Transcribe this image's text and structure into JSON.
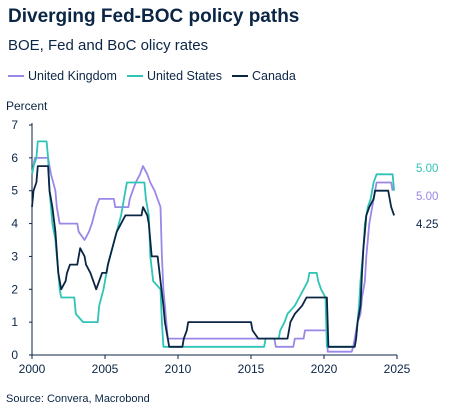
{
  "header": {
    "title": "Diverging Fed-BOC policy paths",
    "subtitle": "BOE, Fed and BoC olicy rates"
  },
  "footer": {
    "source": "Source: Convera, Macrobond"
  },
  "colors": {
    "uk": "#9b87e8",
    "us": "#2ec4b6",
    "canada": "#0b2545"
  },
  "chart_data": {
    "type": "line",
    "ylabel": "Percent",
    "xlabel": "",
    "ylim": [
      0,
      7
    ],
    "xlim": [
      2000,
      2025
    ],
    "yticks": [
      "0",
      "1",
      "2",
      "3",
      "4",
      "5",
      "6",
      "7"
    ],
    "xticks": [
      "2000",
      "2005",
      "2010",
      "2015",
      "2020",
      "2025"
    ],
    "legend_position": "top-left",
    "grid": false,
    "series": [
      {
        "name": "United Kingdom",
        "key": "uk",
        "end_label": "5.00",
        "points": [
          [
            2000,
            5.5
          ],
          [
            2000.1,
            5.75
          ],
          [
            2000.2,
            6.0
          ],
          [
            2001.1,
            6.0
          ],
          [
            2001.2,
            5.75
          ],
          [
            2001.3,
            5.5
          ],
          [
            2001.6,
            5.0
          ],
          [
            2001.7,
            4.5
          ],
          [
            2001.9,
            4.0
          ],
          [
            2003.1,
            4.0
          ],
          [
            2003.2,
            3.75
          ],
          [
            2003.6,
            3.5
          ],
          [
            2003.9,
            3.75
          ],
          [
            2004.1,
            4.0
          ],
          [
            2004.4,
            4.5
          ],
          [
            2004.6,
            4.75
          ],
          [
            2005.6,
            4.75
          ],
          [
            2005.7,
            4.5
          ],
          [
            2006.6,
            4.5
          ],
          [
            2006.7,
            4.75
          ],
          [
            2006.9,
            5.0
          ],
          [
            2007.1,
            5.25
          ],
          [
            2007.4,
            5.5
          ],
          [
            2007.6,
            5.75
          ],
          [
            2007.9,
            5.5
          ],
          [
            2008.1,
            5.25
          ],
          [
            2008.4,
            5.0
          ],
          [
            2008.8,
            4.5
          ],
          [
            2008.9,
            3.0
          ],
          [
            2009.0,
            2.0
          ],
          [
            2009.1,
            1.5
          ],
          [
            2009.2,
            1.0
          ],
          [
            2009.3,
            0.5
          ],
          [
            2016.6,
            0.5
          ],
          [
            2016.7,
            0.25
          ],
          [
            2017.9,
            0.25
          ],
          [
            2018.0,
            0.5
          ],
          [
            2018.6,
            0.5
          ],
          [
            2018.7,
            0.75
          ],
          [
            2020.2,
            0.75
          ],
          [
            2020.25,
            0.1
          ],
          [
            2021.9,
            0.1
          ],
          [
            2022.0,
            0.25
          ],
          [
            2022.1,
            0.5
          ],
          [
            2022.3,
            1.0
          ],
          [
            2022.5,
            1.25
          ],
          [
            2022.6,
            1.75
          ],
          [
            2022.8,
            2.25
          ],
          [
            2022.9,
            3.0
          ],
          [
            2023.0,
            3.5
          ],
          [
            2023.1,
            4.0
          ],
          [
            2023.3,
            4.5
          ],
          [
            2023.5,
            5.0
          ],
          [
            2023.6,
            5.25
          ],
          [
            2024.6,
            5.25
          ],
          [
            2024.7,
            5.0
          ]
        ]
      },
      {
        "name": "United States",
        "key": "us",
        "end_label": "5.00",
        "points": [
          [
            2000,
            5.5
          ],
          [
            2000.1,
            5.75
          ],
          [
            2000.3,
            6.0
          ],
          [
            2000.4,
            6.5
          ],
          [
            2001.0,
            6.5
          ],
          [
            2001.1,
            6.0
          ],
          [
            2001.2,
            5.0
          ],
          [
            2001.4,
            4.0
          ],
          [
            2001.6,
            3.5
          ],
          [
            2001.7,
            3.0
          ],
          [
            2001.8,
            2.5
          ],
          [
            2001.9,
            2.0
          ],
          [
            2002.0,
            1.75
          ],
          [
            2002.9,
            1.75
          ],
          [
            2003.0,
            1.25
          ],
          [
            2003.5,
            1.0
          ],
          [
            2004.5,
            1.0
          ],
          [
            2004.6,
            1.5
          ],
          [
            2004.9,
            2.0
          ],
          [
            2005.2,
            2.75
          ],
          [
            2005.5,
            3.25
          ],
          [
            2005.8,
            3.75
          ],
          [
            2006.1,
            4.25
          ],
          [
            2006.4,
            5.0
          ],
          [
            2006.5,
            5.25
          ],
          [
            2007.7,
            5.25
          ],
          [
            2007.8,
            4.75
          ],
          [
            2008.0,
            4.25
          ],
          [
            2008.1,
            3.0
          ],
          [
            2008.3,
            2.25
          ],
          [
            2008.8,
            2.0
          ],
          [
            2008.9,
            1.0
          ],
          [
            2009.0,
            0.25
          ],
          [
            2015.9,
            0.25
          ],
          [
            2016.0,
            0.5
          ],
          [
            2016.9,
            0.5
          ],
          [
            2017.0,
            0.75
          ],
          [
            2017.3,
            1.0
          ],
          [
            2017.5,
            1.25
          ],
          [
            2018.0,
            1.5
          ],
          [
            2018.3,
            1.75
          ],
          [
            2018.6,
            2.0
          ],
          [
            2018.9,
            2.25
          ],
          [
            2019.0,
            2.5
          ],
          [
            2019.5,
            2.5
          ],
          [
            2019.6,
            2.25
          ],
          [
            2019.8,
            2.0
          ],
          [
            2020.1,
            1.75
          ],
          [
            2020.2,
            0.25
          ],
          [
            2022.1,
            0.25
          ],
          [
            2022.2,
            0.5
          ],
          [
            2022.4,
            1.5
          ],
          [
            2022.5,
            2.25
          ],
          [
            2022.7,
            3.25
          ],
          [
            2022.8,
            4.0
          ],
          [
            2023.0,
            4.5
          ],
          [
            2023.2,
            4.75
          ],
          [
            2023.4,
            5.25
          ],
          [
            2023.6,
            5.5
          ],
          [
            2024.7,
            5.5
          ],
          [
            2024.8,
            5.0
          ]
        ]
      },
      {
        "name": "Canada",
        "key": "canada",
        "end_label": "4.25",
        "points": [
          [
            2000,
            4.5
          ],
          [
            2000.1,
            5.0
          ],
          [
            2000.3,
            5.25
          ],
          [
            2000.4,
            5.75
          ],
          [
            2001.1,
            5.75
          ],
          [
            2001.2,
            5.0
          ],
          [
            2001.4,
            4.5
          ],
          [
            2001.6,
            3.75
          ],
          [
            2001.8,
            2.5
          ],
          [
            2002.0,
            2.0
          ],
          [
            2002.3,
            2.25
          ],
          [
            2002.4,
            2.5
          ],
          [
            2002.6,
            2.75
          ],
          [
            2003.1,
            2.75
          ],
          [
            2003.2,
            3.0
          ],
          [
            2003.3,
            3.25
          ],
          [
            2003.6,
            3.0
          ],
          [
            2003.7,
            2.75
          ],
          [
            2004.0,
            2.5
          ],
          [
            2004.2,
            2.25
          ],
          [
            2004.4,
            2.0
          ],
          [
            2004.8,
            2.5
          ],
          [
            2005.1,
            2.5
          ],
          [
            2005.2,
            2.75
          ],
          [
            2005.5,
            3.25
          ],
          [
            2005.8,
            3.75
          ],
          [
            2006.1,
            4.0
          ],
          [
            2006.4,
            4.25
          ],
          [
            2007.5,
            4.25
          ],
          [
            2007.6,
            4.5
          ],
          [
            2007.9,
            4.25
          ],
          [
            2008.0,
            4.0
          ],
          [
            2008.2,
            3.0
          ],
          [
            2008.6,
            3.0
          ],
          [
            2008.8,
            2.25
          ],
          [
            2009.0,
            1.5
          ],
          [
            2009.1,
            1.0
          ],
          [
            2009.3,
            0.5
          ],
          [
            2009.4,
            0.25
          ],
          [
            2010.3,
            0.25
          ],
          [
            2010.4,
            0.5
          ],
          [
            2010.6,
            0.75
          ],
          [
            2010.7,
            1.0
          ],
          [
            2015.0,
            1.0
          ],
          [
            2015.1,
            0.75
          ],
          [
            2015.5,
            0.5
          ],
          [
            2017.5,
            0.5
          ],
          [
            2017.6,
            0.75
          ],
          [
            2017.7,
            1.0
          ],
          [
            2018.0,
            1.25
          ],
          [
            2018.5,
            1.5
          ],
          [
            2018.8,
            1.75
          ],
          [
            2020.2,
            1.75
          ],
          [
            2020.3,
            0.25
          ],
          [
            2022.1,
            0.25
          ],
          [
            2022.2,
            0.5
          ],
          [
            2022.3,
            1.0
          ],
          [
            2022.5,
            1.5
          ],
          [
            2022.6,
            2.5
          ],
          [
            2022.7,
            3.25
          ],
          [
            2022.8,
            3.75
          ],
          [
            2022.9,
            4.25
          ],
          [
            2023.1,
            4.5
          ],
          [
            2023.4,
            4.75
          ],
          [
            2023.5,
            5.0
          ],
          [
            2024.4,
            5.0
          ],
          [
            2024.5,
            4.75
          ],
          [
            2024.6,
            4.5
          ],
          [
            2024.8,
            4.25
          ]
        ]
      }
    ]
  }
}
